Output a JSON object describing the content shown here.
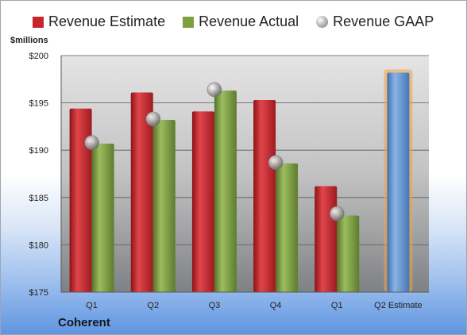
{
  "legend": {
    "estimate": "Revenue Estimate",
    "actual": "Revenue Actual",
    "gaap": "Revenue GAAP"
  },
  "unit_label": "$millions",
  "company": "Coherent",
  "colors": {
    "estimate": "#c8252b",
    "actual": "#7d9f3e",
    "gaap": "#a9a9a9",
    "forecast": "#5b8fd0",
    "forecast_glow": "#f6a23c"
  },
  "chart_data": {
    "type": "bar",
    "categories": [
      "Q1",
      "Q2",
      "Q3",
      "Q4",
      "Q1",
      "Q2 Estimate"
    ],
    "series": [
      {
        "name": "Revenue Estimate",
        "values": [
          194.4,
          196.1,
          194.1,
          195.3,
          186.2,
          null
        ]
      },
      {
        "name": "Revenue Actual",
        "values": [
          190.7,
          193.2,
          196.3,
          188.6,
          183.1,
          null
        ]
      },
      {
        "name": "Revenue GAAP",
        "type": "scatter",
        "values": [
          190.8,
          193.3,
          196.4,
          188.7,
          183.3,
          null
        ]
      }
    ],
    "forecast": {
      "category": "Q2 Estimate",
      "value": 198.2
    },
    "ylabel": "$millions",
    "ylim": [
      175,
      200
    ],
    "y_ticks": [
      "$175",
      "$180",
      "$185",
      "$190",
      "$195",
      "$200"
    ],
    "grid": true,
    "legend_position": "top"
  }
}
